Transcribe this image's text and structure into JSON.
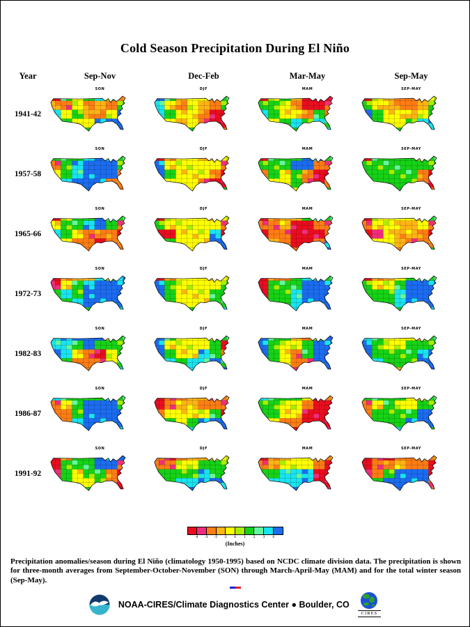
{
  "title": "Cold Season Precipitation During El Niño",
  "caption": "Precipitation anomalies/season during El Niño (climatology 1950-1995) based on NCDC climate division data. The precipitation is shown for three-month averages from September-October-November (SON) through March-April-May (MAM) and for the total winter season (Sep-May).",
  "footer": {
    "text": "NOAA-CIRES/Climate Diagnostics Center ● Boulder, CO",
    "cires_label": "CIRES"
  },
  "chart_data": {
    "type": "heatmap",
    "subtype": "us-climate-division-choropleth-small-multiples",
    "title": "Cold Season Precipitation During El Niño",
    "row_label_header": "Year",
    "columns": [
      "Sep-Nov",
      "Dec-Feb",
      "Mar-May",
      "Sep-May"
    ],
    "map_titles": [
      "SON",
      "DJF",
      "MAM",
      "SEP-MAY"
    ],
    "years": [
      "1941-42",
      "1957-58",
      "1965-66",
      "1972-73",
      "1982-83",
      "1986-87",
      "1991-92"
    ],
    "palette": [
      "#ea0d1e",
      "#f02d7d",
      "#ff7d14",
      "#ffb414",
      "#ffff00",
      "#a8ee00",
      "#16d216",
      "#64f79e",
      "#19e4f0",
      "#1b6cf0"
    ],
    "legend": {
      "units_label": "(Inches)",
      "tick_labels": [
        "-4",
        "-3",
        "-2",
        "-1",
        "0",
        "1",
        "2",
        "3",
        "4"
      ]
    },
    "maps": {
      "1941-42": {
        "SON": [
          "064686236",
          "324232628",
          "846324992",
          "464499999",
          "643699990"
        ],
        "DJF": [
          "963443689",
          "842432699",
          "864420026",
          "443420024",
          "644632242"
        ],
        "MAM": [
          "046300006",
          "664200202",
          "864426228",
          "646868688",
          "468689892"
        ],
        "SEP-MAY": [
          "043223466",
          "643223668",
          "964434688",
          "464468888",
          "644688888"
        ]
      },
      "1957-58": {
        "SON": [
          "666899640",
          "268999600",
          "468999200",
          "689992202",
          "269996224"
        ],
        "DJF": [
          "024434422",
          "944444262",
          "964442002",
          "444420028",
          "642422688"
        ],
        "MAM": [
          "066699661",
          "666992226",
          "264620026",
          "644620268",
          "466422686"
        ],
        "SEP-MAY": [
          "066666632",
          "666666622",
          "666662012",
          "666662024",
          "664666286"
        ]
      },
      "1965-66": {
        "SON": [
          "046698664",
          "466896220",
          "864222021",
          "242202222",
          "422202222"
        ],
        "DJF": [
          "044444422",
          "644444262",
          "004448064",
          "864449998",
          "644499988"
        ],
        "MAM": [
          "023368621",
          "223002221",
          "022000262",
          "232002886",
          "422248984"
        ],
        "SEP-MAY": [
          "044444664",
          "244334222",
          "014332012",
          "244322266",
          "444222686"
        ]
      },
      "1972-73": {
        "SON": [
          "023386866",
          "146899984",
          "686999992",
          "668999984",
          "466699800"
        ],
        "DJF": [
          "024444462",
          "964444622",
          "964446626",
          "864446666",
          "644666864"
        ],
        "MAM": [
          "022689688",
          "066699996",
          "066899998",
          "266899998",
          "461899966"
        ],
        "SEP-MAY": [
          "023468666",
          "644699984",
          "666899996",
          "666899986",
          "466699864"
        ]
      },
      "1982-83": {
        "SON": [
          "889996641",
          "886966622",
          "984204662",
          "662224663",
          "423246862"
        ],
        "DJF": [
          "964446622",
          "944446002",
          "964486206",
          "986889699",
          "888889998"
        ],
        "MAM": [
          "966326999",
          "964469999",
          "964269999",
          "864229998",
          "664189986"
        ],
        "SEP-MAY": [
          "864444666",
          "964466666",
          "966668966",
          "986669998",
          "664389986"
        ]
      },
      "1986-87": {
        "SON": [
          "866669662",
          "246999621",
          "226999960",
          "328999986",
          "288998818"
        ],
        "DJF": [
          "012332262",
          "023322266",
          "244446066",
          "664699998",
          "466899988"
        ],
        "MAM": [
          "866641299",
          "664420028",
          "664400006",
          "642200022",
          "242000122"
        ],
        "SEP-MAY": [
          "666644666",
          "246446666",
          "266669966",
          "666699986",
          "466898668"
        ]
      },
      "1991-92": {
        "SON": [
          "026699926",
          "066699200",
          "164662000",
          "464462000",
          "446662006"
        ],
        "DJF": [
          "202334422",
          "224466622",
          "666686622",
          "668899864",
          "468999884"
        ],
        "MAM": [
          "023444221",
          "234442002",
          "668880002",
          "688890004",
          "268999124"
        ],
        "SEP-MAY": [
          "010223216",
          "022322000",
          "126999000",
          "269999100",
          "469998202"
        ]
      }
    }
  }
}
